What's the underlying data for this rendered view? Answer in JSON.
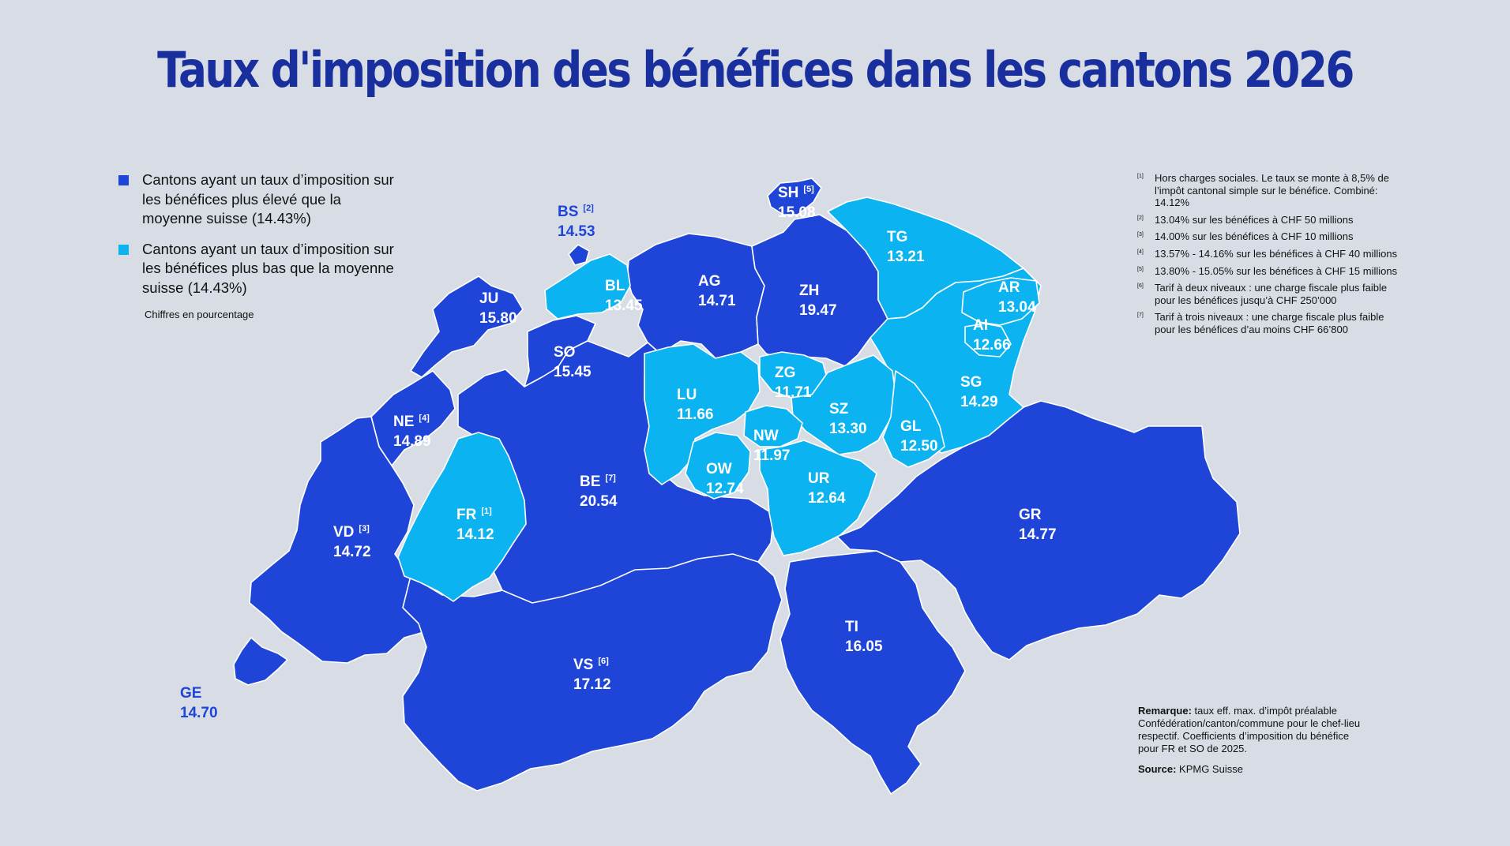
{
  "title": "Taux d'imposition des bénéfices dans les cantons 2026",
  "colors": {
    "background": "#d8dde5",
    "above_average": "#1f44d8",
    "below_average": "#0bb3f0",
    "title": "#1a2f9e",
    "border": "#ffffff"
  },
  "legend": {
    "items": [
      {
        "text": "Cantons ayant un taux d’imposition sur les bénéfices plus élevé que la moyenne suisse (14.43%)",
        "color": "#1f44d8"
      },
      {
        "text": "Cantons ayant un taux d’imposition sur les bénéfices plus bas que la moyenne suisse (14.43%)",
        "color": "#0bb3f0"
      }
    ],
    "note": "Chiffres en pourcentage"
  },
  "cantons": [
    {
      "code": "SH",
      "ref": "[5]",
      "value": "15.08",
      "category": "above"
    },
    {
      "code": "BS",
      "ref": "[2]",
      "value": "14.53",
      "category": "above"
    },
    {
      "code": "BL",
      "ref": "",
      "value": "13.45",
      "category": "below"
    },
    {
      "code": "AG",
      "ref": "",
      "value": "14.71",
      "category": "above"
    },
    {
      "code": "ZH",
      "ref": "",
      "value": "19.47",
      "category": "above"
    },
    {
      "code": "TG",
      "ref": "",
      "value": "13.21",
      "category": "below"
    },
    {
      "code": "AR",
      "ref": "",
      "value": "13.04",
      "category": "below"
    },
    {
      "code": "AI",
      "ref": "",
      "value": "12.66",
      "category": "below"
    },
    {
      "code": "JU",
      "ref": "",
      "value": "15.80",
      "category": "above"
    },
    {
      "code": "SO",
      "ref": "",
      "value": "15.45",
      "category": "above"
    },
    {
      "code": "ZG",
      "ref": "",
      "value": "11.71",
      "category": "below"
    },
    {
      "code": "SG",
      "ref": "",
      "value": "14.29",
      "category": "below"
    },
    {
      "code": "LU",
      "ref": "",
      "value": "11.66",
      "category": "below"
    },
    {
      "code": "SZ",
      "ref": "",
      "value": "13.30",
      "category": "below"
    },
    {
      "code": "NE",
      "ref": "[4]",
      "value": "14.89",
      "category": "above"
    },
    {
      "code": "NW",
      "ref": "",
      "value": "11.97",
      "category": "below"
    },
    {
      "code": "GL",
      "ref": "",
      "value": "12.50",
      "category": "below"
    },
    {
      "code": "OW",
      "ref": "",
      "value": "12.74",
      "category": "below"
    },
    {
      "code": "BE",
      "ref": "[7]",
      "value": "20.54",
      "category": "above"
    },
    {
      "code": "UR",
      "ref": "",
      "value": "12.64",
      "category": "below"
    },
    {
      "code": "FR",
      "ref": "[1]",
      "value": "14.12",
      "category": "below"
    },
    {
      "code": "GR",
      "ref": "",
      "value": "14.77",
      "category": "above"
    },
    {
      "code": "VD",
      "ref": "[3]",
      "value": "14.72",
      "category": "above"
    },
    {
      "code": "TI",
      "ref": "",
      "value": "16.05",
      "category": "above"
    },
    {
      "code": "VS",
      "ref": "[6]",
      "value": "17.12",
      "category": "above"
    },
    {
      "code": "GE",
      "ref": "",
      "value": "14.70",
      "category": "above"
    }
  ],
  "notes": [
    {
      "ref": "[1]",
      "text": "Hors charges sociales. Le taux se monte à 8,5% de l’impôt cantonal simple sur le bénéfice. Combiné: 14.12%"
    },
    {
      "ref": "[2]",
      "text": "13.04% sur les bénéfices à CHF 50 millions"
    },
    {
      "ref": "[3]",
      "text": "14.00% sur les bénéfices à CHF 10 millions"
    },
    {
      "ref": "[4]",
      "text": "13.57% - 14.16% sur les bénéfices à CHF 40 millions"
    },
    {
      "ref": "[5]",
      "text": "13.80% - 15.05% sur les bénéfices à CHF 15 millions"
    },
    {
      "ref": "[6]",
      "text": "Tarif à deux niveaux : une charge fiscale plus faible pour les bénéfices jusqu’à CHF 250’000"
    },
    {
      "ref": "[7]",
      "text": "Tarif à trois niveaux : une charge fiscale plus faible pour les bénéfices d’au moins CHF 66’800"
    }
  ],
  "remark": {
    "label": "Remarque:",
    "text": " taux eff. max. d’impôt préalable Confédération/canton/commune pour le chef-lieu respectif. Coefficients d’imposition du bénéfice pour FR et SO de 2025."
  },
  "source": {
    "label": "Source:",
    "text": " KPMG Suisse"
  }
}
